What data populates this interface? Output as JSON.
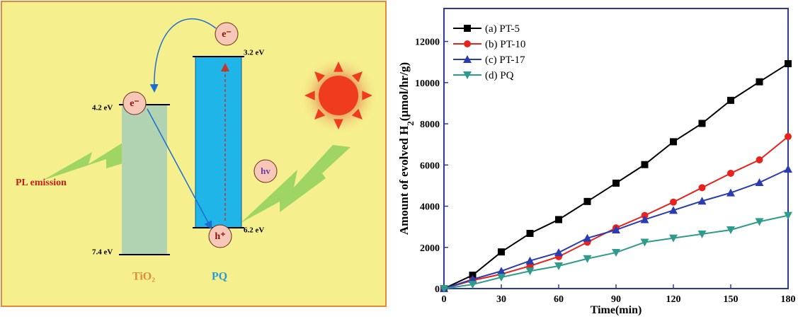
{
  "diagram": {
    "levels": [
      "4.2 eV",
      "7.4 eV",
      "3.2 eV",
      "6.2 eV"
    ],
    "electron_labels": [
      "e⁻",
      "e⁻"
    ],
    "hole_label": "h⁺",
    "photon_label": "hv",
    "emission_label": "PL emission",
    "materials": [
      "TiO₂",
      "PQ"
    ]
  },
  "chart_data": {
    "type": "line",
    "xlabel": "Time(min)",
    "ylabel_parts": [
      "Amount of evolved H",
      "2",
      "(μmol/hr/g)"
    ],
    "x": [
      0,
      15,
      30,
      45,
      60,
      75,
      90,
      105,
      120,
      135,
      150,
      165,
      180
    ],
    "series": [
      {
        "name": "(a) PT-5",
        "color": "#000000",
        "marker": "square",
        "values": [
          0,
          650,
          1780,
          2680,
          3350,
          4230,
          5120,
          6020,
          7130,
          8020,
          9140,
          10040,
          10920
        ]
      },
      {
        "name": "(b) PT-10",
        "color": "#e8231d",
        "marker": "circle",
        "values": [
          0,
          400,
          700,
          1100,
          1550,
          2250,
          2950,
          3550,
          4200,
          4900,
          5600,
          6250,
          7380
        ]
      },
      {
        "name": "(c) PT-17",
        "color": "#2b3bb0",
        "marker": "triangle-up",
        "values": [
          0,
          450,
          850,
          1350,
          1750,
          2450,
          2850,
          3350,
          3800,
          4250,
          4650,
          5150,
          5800
        ]
      },
      {
        "name": "(d) PQ",
        "color": "#2e9b8c",
        "marker": "triangle-down",
        "values": [
          0,
          200,
          550,
          850,
          1100,
          1450,
          1750,
          2250,
          2450,
          2650,
          2850,
          3250,
          3550
        ]
      }
    ],
    "xlim": [
      0,
      180
    ],
    "ylim": [
      0,
      13600
    ],
    "xticks": [
      0,
      30,
      60,
      90,
      120,
      150,
      180
    ],
    "yticks": [
      0,
      2000,
      4000,
      6000,
      8000,
      10000,
      12000
    ],
    "legend": "upper left"
  }
}
